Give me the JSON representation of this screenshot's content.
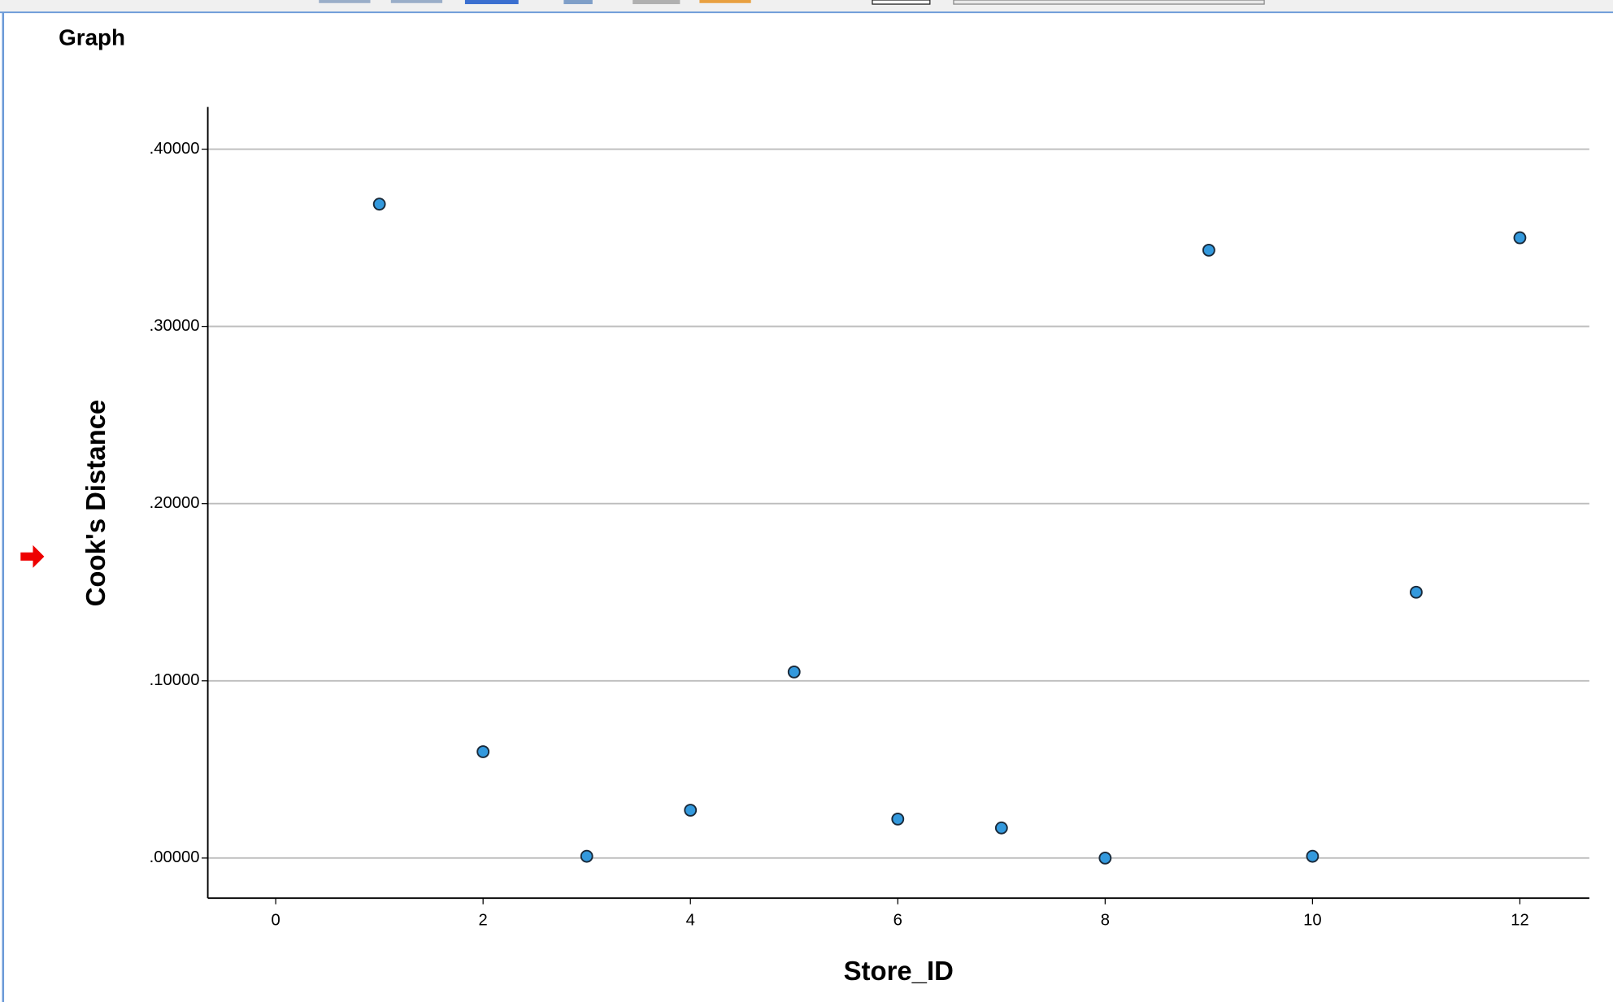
{
  "header": {
    "title": "Graph"
  },
  "chart_data": {
    "type": "scatter",
    "x_label": "Store_ID",
    "y_label": "Cook's Distance",
    "series": [
      {
        "color": "#3399dd",
        "x": [
          1,
          2,
          3,
          4,
          5,
          6,
          7,
          8,
          9,
          10,
          11,
          12
        ],
        "values": [
          0.369,
          0.06,
          0.001,
          0.027,
          0.105,
          0.022,
          0.017,
          0.0,
          0.343,
          0.001,
          0.15,
          0.35
        ]
      }
    ],
    "xlim": [
      -0.655,
      12.67
    ],
    "ylim": [
      -0.0226,
      0.4238
    ],
    "xticks": [
      0,
      2,
      4,
      6,
      8,
      10,
      12
    ],
    "yticks": [
      {
        "value": 0,
        "label": ".00000"
      },
      {
        "value": 0.1,
        "label": ".10000"
      },
      {
        "value": 0.2,
        "label": ".20000"
      },
      {
        "value": 0.3,
        "label": ".30000"
      },
      {
        "value": 0.4,
        "label": ".40000"
      }
    ],
    "grid": true
  }
}
